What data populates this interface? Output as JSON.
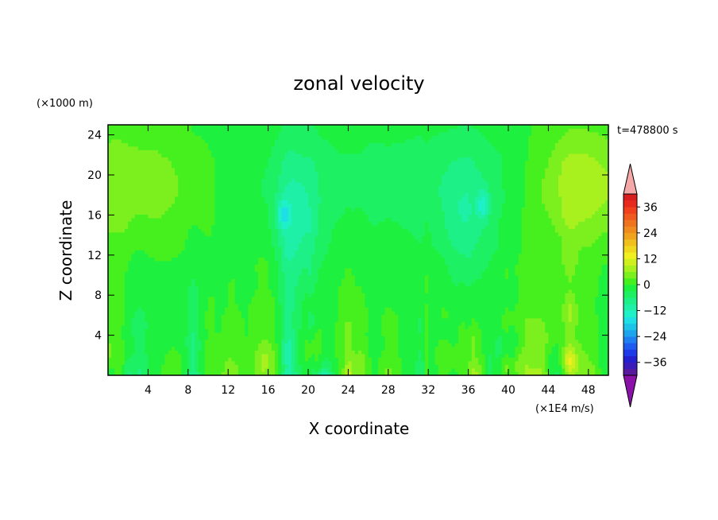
{
  "chart_data": {
    "type": "heatmap",
    "title": "zonal velocity",
    "xlabel": "X coordinate",
    "ylabel": "Z coordinate",
    "x_unit_label": "(×1E4 m/s)",
    "y_unit_label": "(×1000 m)",
    "time_label": "t=478800 s",
    "xlim": [
      0,
      50
    ],
    "ylim": [
      0,
      25
    ],
    "x_ticks": [
      4,
      8,
      12,
      16,
      20,
      24,
      28,
      32,
      36,
      40,
      44,
      48
    ],
    "y_ticks": [
      4,
      8,
      12,
      16,
      20,
      24
    ],
    "colorbar": {
      "levels": [
        -42,
        -39,
        -36,
        -33,
        -30,
        -27,
        -24,
        -21,
        -18,
        -15,
        -12,
        -9,
        -6,
        -3,
        0,
        3,
        6,
        9,
        12,
        15,
        18,
        21,
        24,
        27,
        30,
        33,
        36,
        39,
        42
      ],
      "colors": [
        "#5a1a9e",
        "#3c1cb8",
        "#2420d0",
        "#1e3ae8",
        "#1e5cf0",
        "#1e80f0",
        "#1ea4ec",
        "#1ec4e8",
        "#1ee0e4",
        "#1ef0c8",
        "#1ef0a8",
        "#1ef088",
        "#1ef064",
        "#1ef040",
        "#46f01e",
        "#7cf01e",
        "#a8f01e",
        "#d0f01e",
        "#f0f01e",
        "#f0d81e",
        "#f0c01e",
        "#f0a41e",
        "#f08c1e",
        "#f0741e",
        "#f05a1e",
        "#f0401e",
        "#e82a1e",
        "#d81e1e"
      ],
      "under_color": "#8a12a8",
      "over_color": "#f4a8a8",
      "tick_labels": [
        -36,
        -24,
        -12,
        0,
        12,
        24,
        36
      ]
    },
    "grid": false,
    "legend": "colorbar-right"
  }
}
